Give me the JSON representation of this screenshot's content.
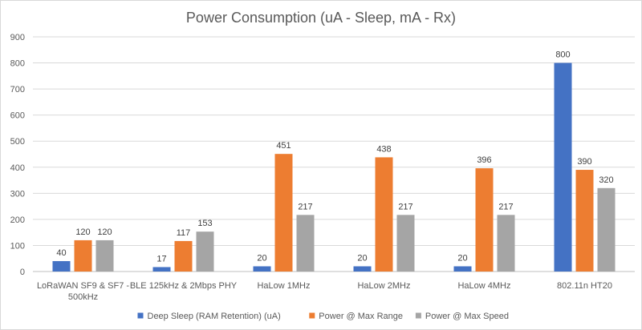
{
  "chart_data": {
    "type": "bar",
    "title": "Power Consumption (uA - Sleep, mA - Rx)",
    "categories": [
      [
        "LoRaWAN SF9 & SF7 -",
        "500kHz"
      ],
      [
        "BLE 125kHz & 2Mbps PHY"
      ],
      [
        "HaLow 1MHz"
      ],
      [
        "HaLow 2MHz"
      ],
      [
        "HaLow 4MHz"
      ],
      [
        "802.11n HT20"
      ]
    ],
    "series": [
      {
        "name": "Deep Sleep (RAM Retention) (uA)",
        "color": "#4472c4",
        "values": [
          40,
          17,
          20,
          20,
          20,
          800
        ]
      },
      {
        "name": "Power @ Max Range",
        "color": "#ed7d31",
        "values": [
          120,
          117,
          451,
          438,
          396,
          390
        ]
      },
      {
        "name": "Power @ Max Speed",
        "color": "#a5a5a5",
        "values": [
          120,
          153,
          217,
          217,
          217,
          320
        ]
      }
    ],
    "ylim": [
      0,
      900
    ],
    "yticks": [
      0,
      100,
      200,
      300,
      400,
      500,
      600,
      700,
      800,
      900
    ],
    "grid": true,
    "legend": "bottom"
  }
}
